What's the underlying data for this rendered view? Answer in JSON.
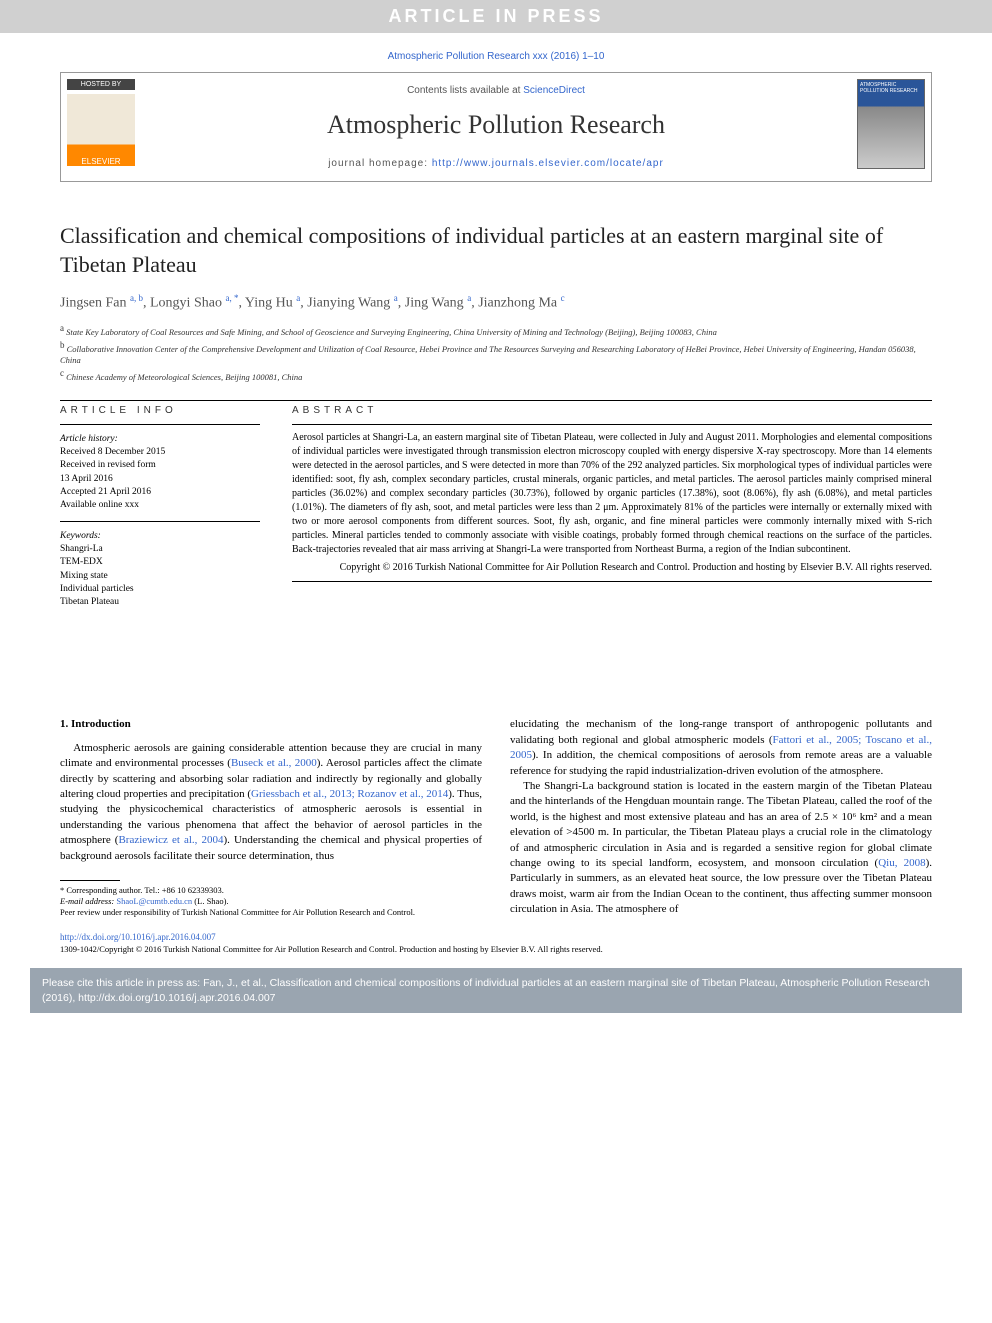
{
  "banner": "ARTICLE IN PRESS",
  "journal_ref": "Atmospheric Pollution Research xxx (2016) 1–10",
  "header": {
    "hosted_by": "HOSTED BY",
    "elsevier": "ELSEVIER",
    "contents_prefix": "Contents lists available at ",
    "contents_link": "ScienceDirect",
    "journal_name": "Atmospheric Pollution Research",
    "homepage_prefix": "journal homepage: ",
    "homepage_url": "http://www.journals.elsevier.com/locate/apr",
    "cover_label": "ATMOSPHERIC POLLUTION RESEARCH"
  },
  "title": "Classification and chemical compositions of individual particles at an eastern marginal site of Tibetan Plateau",
  "authors_html": "Jingsen Fan <sup class='sup'>a, b</sup>, Longyi Shao <sup class='sup'>a, *</sup>, Ying Hu <sup class='sup'>a</sup>, Jianying Wang <sup class='sup'>a</sup>, Jing Wang <sup class='sup'>a</sup>, Jianzhong Ma <sup class='sup'>c</sup>",
  "affiliations": {
    "a": "State Key Laboratory of Coal Resources and Safe Mining, and School of Geoscience and Surveying Engineering, China University of Mining and Technology (Beijing), Beijing 100083, China",
    "b": "Collaborative Innovation Center of the Comprehensive Development and Utilization of Coal Resource, Hebei Province and The Resources Surveying and Researching Laboratory of HeBei Province, Hebei University of Engineering, Handan 056038, China",
    "c": "Chinese Academy of Meteorological Sciences, Beijing 100081, China"
  },
  "info": {
    "head": "ARTICLE INFO",
    "history_label": "Article history:",
    "history": [
      "Received 8 December 2015",
      "Received in revised form",
      "13 April 2016",
      "Accepted 21 April 2016",
      "Available online xxx"
    ],
    "keywords_label": "Keywords:",
    "keywords": [
      "Shangri-La",
      "TEM-EDX",
      "Mixing state",
      "Individual particles",
      "Tibetan Plateau"
    ]
  },
  "abstract": {
    "head": "ABSTRACT",
    "text": "Aerosol particles at Shangri-La, an eastern marginal site of Tibetan Plateau, were collected in July and August 2011. Morphologies and elemental compositions of individual particles were investigated through transmission electron microscopy coupled with energy dispersive X-ray spectroscopy. More than 14 elements were detected in the aerosol particles, and S were detected in more than 70% of the 292 analyzed particles. Six morphological types of individual particles were identified: soot, fly ash, complex secondary particles, crustal minerals, organic particles, and metal particles. The aerosol particles mainly comprised mineral particles (36.02%) and complex secondary particles (30.73%), followed by organic particles (17.38%), soot (8.06%), fly ash (6.08%), and metal particles (1.01%). The diameters of fly ash, soot, and metal particles were less than 2 μm. Approximately 81% of the particles were internally or externally mixed with two or more aerosol components from different sources. Soot, fly ash, organic, and fine mineral particles were commonly internally mixed with S-rich particles. Mineral particles tended to commonly associate with visible coatings, probably formed through chemical reactions on the surface of the particles. Back-trajectories revealed that air mass arriving at Shangri-La were transported from Northeast Burma, a region of the Indian subcontinent.",
    "copyright": "Copyright © 2016 Turkish National Committee for Air Pollution Research and Control. Production and hosting by Elsevier B.V. All rights reserved."
  },
  "body": {
    "intro_head": "1. Introduction",
    "p1_a": "Atmospheric aerosols are gaining considerable attention because they are crucial in many climate and environmental processes (",
    "c1": "Buseck et al., 2000",
    "p1_b": "). Aerosol particles affect the climate directly by scattering and absorbing solar radiation and indirectly by regionally and globally altering cloud properties and precipitation (",
    "c2": "Griessbach et al., 2013; Rozanov et al., 2014",
    "p1_c": "). Thus, studying the physicochemical characteristics of atmospheric aerosols is essential in understanding the various phenomena that affect the behavior of aerosol particles in the atmosphere (",
    "c3": "Braziewicz et al., 2004",
    "p1_d": "). Understanding the chemical and physical properties of background aerosols facilitate their source determination, thus",
    "p2_a": "elucidating the mechanism of the long-range transport of anthropogenic pollutants and validating both regional and global atmospheric models (",
    "c4": "Fattori et al., 2005; Toscano et al., 2005",
    "p2_b": "). In addition, the chemical compositions of aerosols from remote areas are a valuable reference for studying the rapid industrialization-driven evolution of the atmosphere.",
    "p3_a": "The Shangri-La background station is located in the eastern margin of the Tibetan Plateau and the hinterlands of the Hengduan mountain range. The Tibetan Plateau, called the roof of the world, is the highest and most extensive plateau and has an area of 2.5 × 10⁶ km² and a mean elevation of >4500 m. In particular, the Tibetan Plateau plays a crucial role in the climatology of and atmospheric circulation in Asia and is regarded a sensitive region for global climate change owing to its special landform, ecosystem, and monsoon circulation (",
    "c5": "Qiu, 2008",
    "p3_b": "). Particularly in summers, as an elevated heat source, the low pressure over the Tibetan Plateau draws moist, warm air from the Indian Ocean to the continent, thus affecting summer monsoon circulation in Asia. The atmosphere of"
  },
  "footnotes": {
    "corr": "* Corresponding author. Tel.: +86 10 62339303.",
    "email_label": "E-mail address: ",
    "email": "ShaoL@cumtb.edu.cn",
    "email_suffix": " (L. Shao).",
    "peer": "Peer review under responsibility of Turkish National Committee for Air Pollution Research and Control."
  },
  "doi": {
    "url": "http://dx.doi.org/10.1016/j.apr.2016.04.007",
    "copyright": "1309-1042/Copyright © 2016 Turkish National Committee for Air Pollution Research and Control. Production and hosting by Elsevier B.V. All rights reserved."
  },
  "citation_box": "Please cite this article in press as: Fan, J., et al., Classification and chemical compositions of individual particles at an eastern marginal site of Tibetan Plateau, Atmospheric Pollution Research (2016), http://dx.doi.org/10.1016/j.apr.2016.04.007"
}
